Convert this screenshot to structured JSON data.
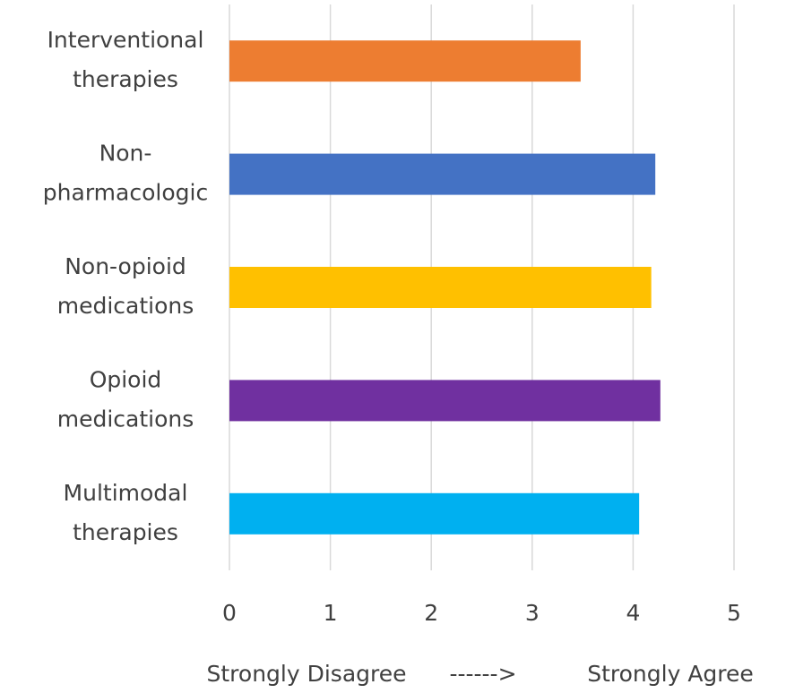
{
  "chart_data": {
    "type": "bar",
    "orientation": "horizontal",
    "categories": [
      [
        "Interventional",
        "therapies"
      ],
      [
        "Non-",
        "pharmacologic"
      ],
      [
        "Non-opioid",
        "medications"
      ],
      [
        "Opioid",
        "medications"
      ],
      [
        "Multimodal",
        "therapies"
      ]
    ],
    "values": [
      3.48,
      4.22,
      4.18,
      4.27,
      4.06
    ],
    "colors": [
      "#ed7d31",
      "#4472c4",
      "#ffc000",
      "#7030a0",
      "#00b0f0"
    ],
    "xlim": [
      0,
      5
    ],
    "xticks": [
      0,
      1,
      2,
      3,
      4,
      5
    ],
    "grid": true,
    "x_label": [
      "Strongly Disagree",
      "------>",
      "Strongly Agree"
    ]
  }
}
